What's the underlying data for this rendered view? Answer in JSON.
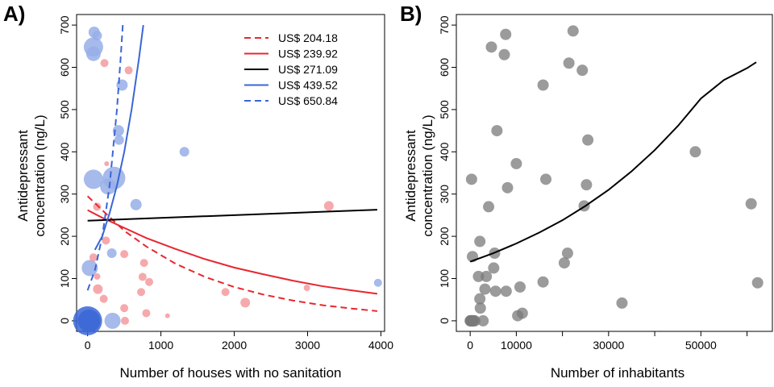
{
  "chart_data": [
    {
      "panel": "A)",
      "type": "scatter",
      "xlabel": "Number of houses with no sanitation",
      "ylabel_lines": [
        "Antidepressant",
        "concentration (ng/L)"
      ],
      "xlim": [
        -150,
        4050
      ],
      "ylim": [
        -25,
        725
      ],
      "xticks": [
        0,
        1000,
        2000,
        3000,
        4000
      ],
      "yticks": [
        0,
        100,
        200,
        300,
        400,
        500,
        600,
        700
      ],
      "xtick_labels": [
        "0",
        "1000",
        "2000",
        "3000",
        "4000"
      ],
      "ytick_labels": [
        "0",
        "100",
        "200",
        "300",
        "400",
        "500",
        "600",
        "700"
      ],
      "grid": false,
      "legend_position": "top-right",
      "colors": {
        "red": "#e8272f",
        "blue": "#3a66d6",
        "black": "#000000",
        "red_point": "#f59a9e",
        "blue_point": "#96aee8",
        "blue_point_dark": "#3a66d6"
      },
      "series": [
        {
          "name": "US$ 204.18",
          "color": "red",
          "dash": true,
          "x": [
            0,
            200,
            500,
            800,
            1200,
            1600,
            2000,
            2400,
            2800,
            3200,
            3600,
            3950
          ],
          "y": [
            295,
            262,
            213,
            176,
            135,
            104,
            80,
            62,
            48,
            37,
            29,
            23
          ]
        },
        {
          "name": "US$ 239.92",
          "color": "red",
          "dash": false,
          "x": [
            0,
            200,
            500,
            800,
            1200,
            1600,
            2000,
            2400,
            2800,
            3200,
            3600,
            3950
          ],
          "y": [
            262,
            244,
            220,
            196,
            170,
            146,
            126,
            110,
            95,
            82,
            72,
            64
          ]
        },
        {
          "name": "US$ 271.09",
          "color": "black",
          "dash": false,
          "x": [
            0,
            3950
          ],
          "y": [
            237,
            263
          ]
        },
        {
          "name": "US$ 439.52",
          "color": "blue",
          "dash": false,
          "x": [
            100,
            200,
            300,
            400,
            500,
            600,
            700,
            760
          ],
          "y": [
            168,
            200,
            255,
            320,
            400,
            500,
            620,
            700
          ]
        },
        {
          "name": "US$ 650.84",
          "color": "blue",
          "dash": true,
          "x": [
            0,
            100,
            200,
            300,
            400,
            450,
            480
          ],
          "y": [
            72,
            120,
            200,
            320,
            500,
            620,
            700
          ]
        }
      ],
      "points": [
        {
          "x": 0,
          "y": 0,
          "size": 18,
          "color": "blue_point_dark"
        },
        {
          "x": 20,
          "y": 0,
          "size": 14,
          "color": "blue_point_dark"
        },
        {
          "x": 340,
          "y": 0,
          "size": 10,
          "color": "blue_point"
        },
        {
          "x": 30,
          "y": 125,
          "size": 10,
          "color": "blue_point"
        },
        {
          "x": 80,
          "y": 335,
          "size": 12,
          "color": "blue_point"
        },
        {
          "x": 80,
          "y": 648,
          "size": 12,
          "color": "blue_point"
        },
        {
          "x": 80,
          "y": 632,
          "size": 9,
          "color": "blue_point"
        },
        {
          "x": 90,
          "y": 683,
          "size": 7,
          "color": "blue_point"
        },
        {
          "x": 130,
          "y": 675,
          "size": 6,
          "color": "blue_point"
        },
        {
          "x": 360,
          "y": 338,
          "size": 14,
          "color": "blue_point"
        },
        {
          "x": 280,
          "y": 318,
          "size": 10,
          "color": "blue_point"
        },
        {
          "x": 330,
          "y": 160,
          "size": 6,
          "color": "blue_point"
        },
        {
          "x": 420,
          "y": 450,
          "size": 7,
          "color": "blue_point"
        },
        {
          "x": 430,
          "y": 428,
          "size": 6,
          "color": "blue_point"
        },
        {
          "x": 470,
          "y": 558,
          "size": 7,
          "color": "blue_point"
        },
        {
          "x": 660,
          "y": 275,
          "size": 7,
          "color": "blue_point"
        },
        {
          "x": 1320,
          "y": 400,
          "size": 6,
          "color": "blue_point"
        },
        {
          "x": 3960,
          "y": 90,
          "size": 5,
          "color": "blue_point"
        },
        {
          "x": 230,
          "y": 610,
          "size": 5,
          "color": "red_point"
        },
        {
          "x": 560,
          "y": 593,
          "size": 5,
          "color": "red_point"
        },
        {
          "x": 260,
          "y": 372,
          "size": 3,
          "color": "red_point"
        },
        {
          "x": 130,
          "y": 270,
          "size": 5,
          "color": "red_point"
        },
        {
          "x": 250,
          "y": 190,
          "size": 5,
          "color": "red_point"
        },
        {
          "x": 80,
          "y": 150,
          "size": 5,
          "color": "red_point"
        },
        {
          "x": 500,
          "y": 158,
          "size": 5,
          "color": "red_point"
        },
        {
          "x": 130,
          "y": 105,
          "size": 4,
          "color": "red_point"
        },
        {
          "x": 770,
          "y": 137,
          "size": 5,
          "color": "red_point"
        },
        {
          "x": 750,
          "y": 104,
          "size": 5,
          "color": "red_point"
        },
        {
          "x": 840,
          "y": 92,
          "size": 5,
          "color": "red_point"
        },
        {
          "x": 140,
          "y": 75,
          "size": 6,
          "color": "red_point"
        },
        {
          "x": 730,
          "y": 68,
          "size": 5,
          "color": "red_point"
        },
        {
          "x": 220,
          "y": 52,
          "size": 5,
          "color": "red_point"
        },
        {
          "x": 500,
          "y": 30,
          "size": 5,
          "color": "red_point"
        },
        {
          "x": 800,
          "y": 18,
          "size": 5,
          "color": "red_point"
        },
        {
          "x": 1090,
          "y": 12,
          "size": 3,
          "color": "red_point"
        },
        {
          "x": 510,
          "y": 0,
          "size": 5,
          "color": "red_point"
        },
        {
          "x": 1880,
          "y": 68,
          "size": 5,
          "color": "red_point"
        },
        {
          "x": 2150,
          "y": 43,
          "size": 6,
          "color": "red_point"
        },
        {
          "x": 2990,
          "y": 78,
          "size": 4,
          "color": "red_point"
        },
        {
          "x": 3290,
          "y": 272,
          "size": 6,
          "color": "red_point"
        }
      ]
    },
    {
      "panel": "B)",
      "type": "scatter",
      "xlabel": "Number of inhabitants",
      "ylabel_lines": [
        "Antidepressant",
        "concentration (ng/L)"
      ],
      "xlim": [
        -3000,
        65500
      ],
      "ylim": [
        -25,
        725
      ],
      "xticks": [
        0,
        10000,
        30000,
        50000
      ],
      "xticks_unlabeled": [
        20000,
        40000,
        60000
      ],
      "yticks": [
        0,
        100,
        200,
        300,
        400,
        500,
        600,
        700
      ],
      "xtick_labels": [
        "0",
        "10000",
        "30000",
        "50000"
      ],
      "ytick_labels": [
        "0",
        "100",
        "200",
        "300",
        "400",
        "500",
        "600",
        "700"
      ],
      "grid": false,
      "colors": {
        "point": "#7a7a7a",
        "line": "#000000"
      },
      "fit_curve": {
        "x": [
          0,
          5000,
          10000,
          15000,
          20000,
          25000,
          30000,
          35000,
          40000,
          45000,
          50000,
          55000,
          60000,
          62000
        ],
        "y": [
          140,
          160,
          183,
          209,
          238,
          272,
          310,
          354,
          404,
          461,
          526,
          570,
          598,
          612
        ]
      },
      "points": [
        {
          "x": 0,
          "y": 0
        },
        {
          "x": 100,
          "y": 0
        },
        {
          "x": 200,
          "y": 0
        },
        {
          "x": 300,
          "y": 0
        },
        {
          "x": 400,
          "y": 0
        },
        {
          "x": 500,
          "y": 0
        },
        {
          "x": 600,
          "y": 0
        },
        {
          "x": 700,
          "y": 0
        },
        {
          "x": 1000,
          "y": 0
        },
        {
          "x": 2800,
          "y": 0
        },
        {
          "x": 300,
          "y": 335
        },
        {
          "x": 500,
          "y": 152
        },
        {
          "x": 1800,
          "y": 105
        },
        {
          "x": 2100,
          "y": 188
        },
        {
          "x": 2100,
          "y": 52
        },
        {
          "x": 2200,
          "y": 30
        },
        {
          "x": 3200,
          "y": 75
        },
        {
          "x": 3500,
          "y": 105
        },
        {
          "x": 4000,
          "y": 270
        },
        {
          "x": 4600,
          "y": 648
        },
        {
          "x": 5100,
          "y": 125
        },
        {
          "x": 5300,
          "y": 160
        },
        {
          "x": 5500,
          "y": 70
        },
        {
          "x": 5800,
          "y": 450
        },
        {
          "x": 7400,
          "y": 630
        },
        {
          "x": 7700,
          "y": 678
        },
        {
          "x": 7800,
          "y": 70
        },
        {
          "x": 8100,
          "y": 315
        },
        {
          "x": 10000,
          "y": 372
        },
        {
          "x": 10300,
          "y": 12
        },
        {
          "x": 10800,
          "y": 80
        },
        {
          "x": 11300,
          "y": 18
        },
        {
          "x": 15800,
          "y": 558
        },
        {
          "x": 15800,
          "y": 92
        },
        {
          "x": 16400,
          "y": 335
        },
        {
          "x": 20400,
          "y": 137
        },
        {
          "x": 21100,
          "y": 160
        },
        {
          "x": 21400,
          "y": 610
        },
        {
          "x": 22300,
          "y": 686
        },
        {
          "x": 24300,
          "y": 593
        },
        {
          "x": 24700,
          "y": 272
        },
        {
          "x": 25200,
          "y": 322
        },
        {
          "x": 25500,
          "y": 428
        },
        {
          "x": 32900,
          "y": 42
        },
        {
          "x": 48800,
          "y": 400
        },
        {
          "x": 60900,
          "y": 277
        },
        {
          "x": 62300,
          "y": 90
        }
      ]
    }
  ]
}
